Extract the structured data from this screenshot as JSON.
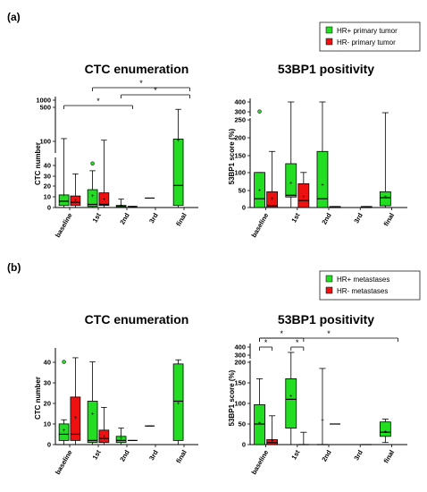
{
  "colors": {
    "green": "#22dd22",
    "red": "#ee1111",
    "black": "#000000"
  },
  "panels": [
    {
      "label": "(a)",
      "legend": [
        {
          "label": "HR+ primary tumor",
          "color": "#22dd22"
        },
        {
          "label": "HR- primary tumor",
          "color": "#ee1111"
        }
      ]
    },
    {
      "label": "(b)",
      "legend": [
        {
          "label": "HR+ metastases",
          "color": "#22dd22"
        },
        {
          "label": "HR- metastases",
          "color": "#ee1111"
        }
      ]
    }
  ],
  "chart_data": [
    {
      "type": "box",
      "panel": "(a)",
      "title": "CTC enumeration",
      "ylabel": "CTC number",
      "categories": [
        "baseline",
        "1st",
        "2nd",
        "3rd",
        "final"
      ],
      "y_axis_break": true,
      "ylim_lower": [
        0,
        40
      ],
      "ylim_upper": [
        100,
        1000
      ],
      "yticks_lower": [
        "0",
        "10",
        "20",
        "30",
        "40"
      ],
      "yticks_upper": [
        "100",
        "500",
        "1000"
      ],
      "series": [
        {
          "name": "HR+ primary tumor",
          "color": "#22dd22",
          "boxes": [
            {
              "category": "baseline",
              "min": 0,
              "q1": 2,
              "median": 6,
              "q3": 12,
              "max": 160,
              "mean": 12
            },
            {
              "category": "1st",
              "min": 0,
              "q1": 1,
              "median": 3,
              "q3": 17,
              "max": 35,
              "mean": 11,
              "outlier": 45
            },
            {
              "category": "2nd",
              "min": 0,
              "q1": 0,
              "median": 1,
              "q3": 2,
              "max": 8,
              "mean": 2
            },
            {
              "category": "3rd",
              "min": 9,
              "q1": 9,
              "median": 9,
              "q3": 9,
              "max": 9
            },
            {
              "category": "final",
              "min": 0,
              "q1": 2,
              "median": 21,
              "q3": 150,
              "max": 800,
              "mean": 120
            }
          ]
        },
        {
          "name": "HR- primary tumor",
          "color": "#ee1111",
          "boxes": [
            {
              "category": "baseline",
              "min": 0,
              "q1": 2,
              "median": 5,
              "q3": 11,
              "max": 32,
              "mean": 7
            },
            {
              "category": "1st",
              "min": 0,
              "q1": 2,
              "median": 3,
              "q3": 14,
              "max": 125,
              "mean": 8
            },
            {
              "category": "2nd",
              "min": 1,
              "q1": 1,
              "median": 1,
              "q3": 1,
              "max": 1
            }
          ]
        }
      ],
      "annotations": [
        {
          "text": "*",
          "from": "baseline",
          "to": "2nd"
        },
        {
          "text": "*",
          "from": "1st",
          "to": "final"
        },
        {
          "text": "*",
          "from": "2nd",
          "to": "final"
        }
      ]
    },
    {
      "type": "box",
      "panel": "(a)",
      "title": "53BP1 positivity",
      "ylabel": "53BP1 score (%)",
      "categories": [
        "baseline",
        "1st",
        "2nd",
        "3rd",
        "final"
      ],
      "y_axis_break": true,
      "ylim_lower": [
        0,
        250
      ],
      "ylim_upper": [
        300,
        400
      ],
      "yticks_lower": [
        "0",
        "50",
        "100",
        "150",
        "200",
        "250"
      ],
      "yticks_upper": [
        "300",
        "400"
      ],
      "series": [
        {
          "name": "HR+ primary tumor",
          "color": "#22dd22",
          "boxes": [
            {
              "category": "baseline",
              "min": 0,
              "q1": 0,
              "median": 25,
              "q3": 100,
              "max": 100,
              "mean": 50,
              "outlier": 320
            },
            {
              "category": "1st",
              "min": 0,
              "q1": 30,
              "median": 35,
              "q3": 125,
              "max": 400,
              "mean": 70
            },
            {
              "category": "2nd",
              "min": 0,
              "q1": 0,
              "median": 25,
              "q3": 160,
              "max": 400,
              "mean": 65
            },
            {
              "category": "final",
              "min": 0,
              "q1": 5,
              "median": 28,
              "q3": 45,
              "max": 310,
              "mean": 30
            }
          ]
        },
        {
          "name": "HR- primary tumor",
          "color": "#ee1111",
          "boxes": [
            {
              "category": "baseline",
              "min": 0,
              "q1": 0,
              "median": 5,
              "q3": 45,
              "max": 160,
              "mean": 25
            },
            {
              "category": "1st",
              "min": 0,
              "q1": 0,
              "median": 20,
              "q3": 68,
              "max": 100,
              "mean": 30
            },
            {
              "category": "2nd",
              "min": 0,
              "q1": 0,
              "median": 0,
              "q3": 3,
              "max": 3
            },
            {
              "category": "3rd",
              "min": 0,
              "q1": 0,
              "median": 0,
              "q3": 3,
              "max": 3
            }
          ]
        }
      ]
    },
    {
      "type": "box",
      "panel": "(b)",
      "title": "CTC enumeration",
      "ylabel": "CTC number",
      "categories": [
        "baseline",
        "1st",
        "2nd",
        "3rd",
        "final"
      ],
      "ylim": [
        0,
        45
      ],
      "yticks": [
        "0",
        "10",
        "20",
        "30",
        "40"
      ],
      "series": [
        {
          "name": "HR+ metastases",
          "color": "#22dd22",
          "boxes": [
            {
              "category": "baseline",
              "min": 0,
              "q1": 2,
              "median": 5,
              "q3": 10,
              "max": 12,
              "mean": 7,
              "outlier": 40
            },
            {
              "category": "1st",
              "min": 0,
              "q1": 1,
              "median": 2,
              "q3": 21,
              "max": 40,
              "mean": 15
            },
            {
              "category": "2nd",
              "min": 0,
              "q1": 1,
              "median": 2,
              "q3": 4,
              "max": 8,
              "mean": 3
            },
            {
              "category": "3rd",
              "min": 9,
              "q1": 9,
              "median": 9,
              "q3": 9,
              "max": 9
            },
            {
              "category": "final",
              "min": 0,
              "q1": 2,
              "median": 21,
              "q3": 39,
              "max": 41,
              "mean": 20
            }
          ]
        },
        {
          "name": "HR- metastases",
          "color": "#ee1111",
          "boxes": [
            {
              "category": "baseline",
              "min": 0,
              "q1": 2,
              "median": 5,
              "q3": 23,
              "max": 42,
              "mean": 13
            },
            {
              "category": "1st",
              "min": 0,
              "q1": 1,
              "median": 3,
              "q3": 7,
              "max": 18,
              "mean": 4
            },
            {
              "category": "2nd",
              "min": 2,
              "q1": 2,
              "median": 2,
              "q3": 2,
              "max": 2
            }
          ]
        }
      ]
    },
    {
      "type": "box",
      "panel": "(b)",
      "title": "53BP1 positivity",
      "ylabel": "53BP1 score (%)",
      "categories": [
        "baseline",
        "1st",
        "2nd",
        "3rd",
        "final"
      ],
      "y_axis_break": true,
      "ylim_lower": [
        0,
        200
      ],
      "ylim_upper": [
        300,
        400
      ],
      "yticks_lower": [
        "0",
        "50",
        "100",
        "150",
        "200"
      ],
      "yticks_upper": [
        "300",
        "400"
      ],
      "series": [
        {
          "name": "HR+ metastases",
          "color": "#22dd22",
          "boxes": [
            {
              "category": "baseline",
              "min": 0,
              "q1": 0,
              "median": 50,
              "q3": 97,
              "max": 160,
              "mean": 52
            },
            {
              "category": "1st",
              "min": 0,
              "q1": 40,
              "median": 110,
              "q3": 160,
              "max": 330,
              "mean": 118
            },
            {
              "category": "2nd",
              "min": 0,
              "q1": 0,
              "median": 0,
              "q3": 0,
              "max": 185,
              "mean": 60
            },
            {
              "category": "final",
              "min": 5,
              "q1": 20,
              "median": 30,
              "q3": 55,
              "max": 62,
              "mean": 32
            }
          ]
        },
        {
          "name": "HR- metastases",
          "color": "#ee1111",
          "boxes": [
            {
              "category": "baseline",
              "min": 0,
              "q1": 0,
              "median": 5,
              "q3": 12,
              "max": 70,
              "mean": 10
            },
            {
              "category": "1st",
              "min": 0,
              "q1": 0,
              "median": 0,
              "q3": 0,
              "max": 30
            },
            {
              "category": "2nd",
              "min": 50,
              "q1": 50,
              "median": 50,
              "q3": 50,
              "max": 50
            },
            {
              "category": "3rd",
              "min": 0,
              "q1": 0,
              "median": 0,
              "q3": 0,
              "max": 0
            }
          ]
        }
      ],
      "annotations": [
        {
          "text": "*",
          "from": "baseline",
          "to": "baseline"
        },
        {
          "text": "*",
          "from": "baseline",
          "to": "1st"
        },
        {
          "text": "*",
          "from": "1st",
          "to": "1st"
        },
        {
          "text": "*",
          "from": "baseline",
          "to": "final"
        }
      ]
    }
  ]
}
